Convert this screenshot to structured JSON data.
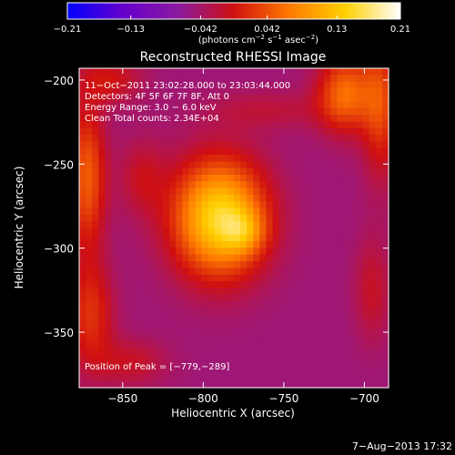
{
  "chart_data": {
    "type": "heatmap",
    "title": "Reconstructed RHESSI Image",
    "xlabel": "Heliocentric X (arcsec)",
    "ylabel": "Heliocentric Y (arcsec)",
    "xlim": [
      -877,
      -685
    ],
    "ylim": [
      -383,
      -193
    ],
    "x_ticks": [
      -850,
      -800,
      -750,
      -700
    ],
    "y_ticks": [
      -350,
      -300,
      -250,
      -200
    ],
    "x_tick_labels": [
      "−850",
      "−800",
      "−750",
      "−700"
    ],
    "y_tick_labels": [
      "−350",
      "−300",
      "−250",
      "−200"
    ],
    "colorbar": {
      "min": -0.21,
      "max": 0.21,
      "tick_values": [
        -0.21,
        -0.13,
        -0.042,
        0.042,
        0.13,
        0.21
      ],
      "tick_labels": [
        "−0.21",
        "−0.13",
        "−0.042",
        "0.042",
        "0.13",
        "0.21"
      ],
      "units_prefix": "(photons cm",
      "units_exp1": "−2",
      "units_mid1": " s",
      "units_exp2": "−1",
      "units_mid2": " asec",
      "units_exp3": "−2",
      "units_suffix": ")",
      "colors": [
        "#0000ff",
        "#6600cc",
        "#8a1aa0",
        "#d01010",
        "#ff7a00",
        "#ffd000",
        "#ffffff"
      ]
    },
    "annotations": [
      "11−Oct−2011 23:02:28.000 to 23:03:44.000",
      "Detectors: 4F 5F 6F 7F 8F, Att 0",
      "Energy Range: 3.0 − 6.0 keV",
      "Clean    Total counts: 2.34E+04"
    ],
    "peak_label": "Position of Peak = [−779,−289]",
    "peak": [
      -779,
      -289
    ],
    "sources": [
      {
        "x": -790,
        "y": -282,
        "sx": 20,
        "sy": 24,
        "amp": 0.2
      },
      {
        "x": -775,
        "y": -290,
        "sx": 9,
        "sy": 9,
        "amp": 0.06
      },
      {
        "x": -712,
        "y": -208,
        "sx": 12,
        "sy": 16,
        "amp": 0.11
      },
      {
        "x": -690,
        "y": -215,
        "sx": 8,
        "sy": 30,
        "amp": 0.08
      },
      {
        "x": -858,
        "y": -200,
        "sx": 14,
        "sy": 10,
        "amp": 0.05
      },
      {
        "x": -872,
        "y": -258,
        "sx": 8,
        "sy": 30,
        "amp": 0.1
      },
      {
        "x": -870,
        "y": -340,
        "sx": 10,
        "sy": 22,
        "amp": 0.07
      },
      {
        "x": -845,
        "y": -368,
        "sx": 16,
        "sy": 10,
        "amp": 0.04
      },
      {
        "x": -695,
        "y": -325,
        "sx": 8,
        "sy": 22,
        "amp": 0.04
      },
      {
        "x": -760,
        "y": -218,
        "sx": 26,
        "sy": 8,
        "amp": 0.03
      },
      {
        "x": -838,
        "y": -258,
        "sx": 10,
        "sy": 16,
        "amp": 0.04
      }
    ],
    "background": -0.05,
    "grid": false
  },
  "footer": {
    "date": "7−Aug−2013 17:32"
  }
}
